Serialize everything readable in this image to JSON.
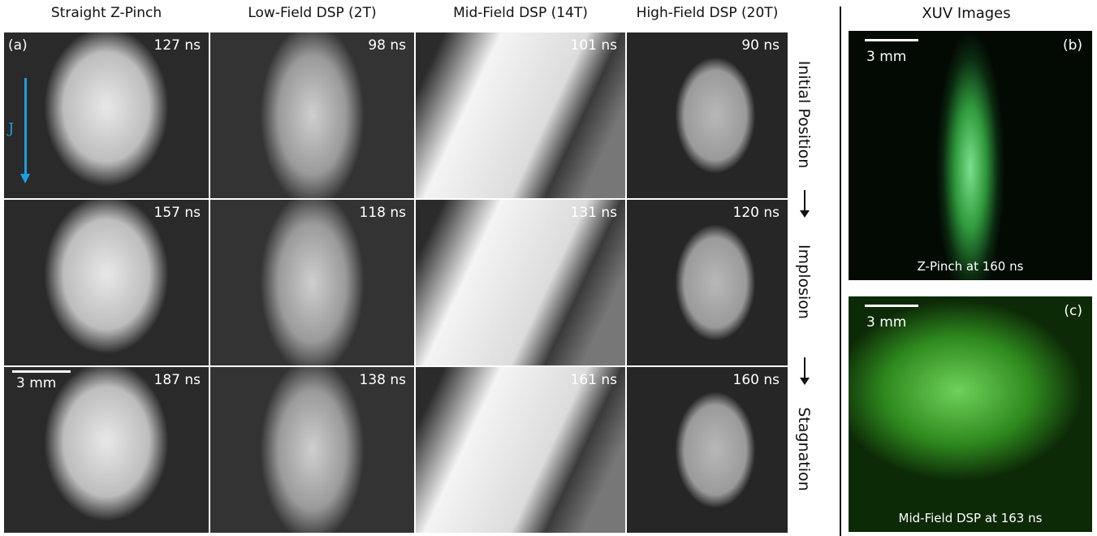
{
  "headers": [
    "Straight Z-Pinch",
    "Low-Field DSP (2T)",
    "Mid-Field DSP (14T)",
    "High-Field DSP (20T)"
  ],
  "panel_label": "(a)",
  "current_label": "J",
  "scale_bar": "3 mm",
  "rows": [
    {
      "stage": "Initial Position",
      "times": [
        "127 ns",
        "98 ns",
        "101 ns",
        "90 ns"
      ]
    },
    {
      "stage": "Implosion",
      "times": [
        "157 ns",
        "118 ns",
        "131 ns",
        "120 ns"
      ]
    },
    {
      "stage": "Stagnation",
      "times": [
        "187 ns",
        "138 ns",
        "161 ns",
        "160 ns"
      ]
    }
  ],
  "xuv": {
    "title": "XUV Images",
    "panels": [
      {
        "label": "(b)",
        "scale_bar": "3 mm",
        "caption": "Z-Pinch at 160 ns"
      },
      {
        "label": "(c)",
        "scale_bar": "3 mm",
        "caption": "Mid-Field DSP at 163 ns"
      }
    ]
  }
}
